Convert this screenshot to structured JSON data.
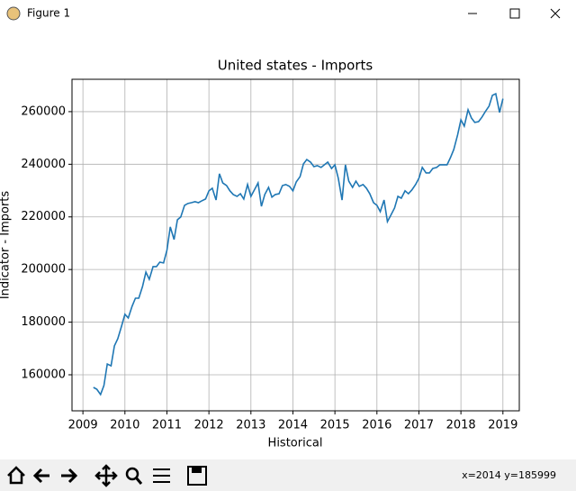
{
  "window": {
    "title": "Figure 1",
    "status": "x=2014 y=185999"
  },
  "chart_data": {
    "type": "line",
    "title": "United states - Imports",
    "x_label": "Historical",
    "y_label": "Indicator - Imports",
    "x": [
      2009.25,
      2009.33,
      2009.42,
      2009.5,
      2009.58,
      2009.67,
      2009.75,
      2009.83,
      2009.92,
      2010,
      2010.08,
      2010.17,
      2010.25,
      2010.33,
      2010.42,
      2010.5,
      2010.58,
      2010.67,
      2010.75,
      2010.83,
      2010.92,
      2011,
      2011.08,
      2011.17,
      2011.25,
      2011.33,
      2011.42,
      2011.5,
      2011.58,
      2011.67,
      2011.75,
      2011.83,
      2011.92,
      2012,
      2012.08,
      2012.17,
      2012.25,
      2012.33,
      2012.42,
      2012.5,
      2012.58,
      2012.67,
      2012.75,
      2012.83,
      2012.92,
      2013,
      2013.08,
      2013.17,
      2013.25,
      2013.33,
      2013.42,
      2013.5,
      2013.58,
      2013.67,
      2013.75,
      2013.83,
      2013.92,
      2014,
      2014.08,
      2014.17,
      2014.25,
      2014.33,
      2014.42,
      2014.5,
      2014.58,
      2014.67,
      2014.75,
      2014.83,
      2014.92,
      2015,
      2015.08,
      2015.17,
      2015.25,
      2015.33,
      2015.42,
      2015.5,
      2015.58,
      2015.67,
      2015.75,
      2015.83,
      2015.92,
      2016,
      2016.08,
      2016.17,
      2016.25,
      2016.33,
      2016.42,
      2016.5,
      2016.58,
      2016.67,
      2016.75,
      2016.83,
      2016.92,
      2017,
      2017.08,
      2017.17,
      2017.25,
      2017.33,
      2017.42,
      2017.5,
      2017.58,
      2017.67,
      2017.75,
      2017.83,
      2017.92,
      2018,
      2018.08,
      2018.17,
      2018.25,
      2018.33,
      2018.42,
      2018.5,
      2018.58,
      2018.67,
      2018.75,
      2018.83,
      2018.92,
      2019
    ],
    "values": [
      155200,
      154500,
      152500,
      155900,
      164100,
      163400,
      171000,
      173700,
      178500,
      183000,
      181600,
      186000,
      189100,
      189100,
      193600,
      199000,
      196300,
      201100,
      201100,
      202800,
      202500,
      207300,
      216200,
      211400,
      218900,
      220000,
      224400,
      225100,
      225400,
      225800,
      225400,
      226100,
      226800,
      229900,
      230900,
      226400,
      236400,
      232900,
      231900,
      229900,
      228500,
      227800,
      228800,
      226800,
      232300,
      227800,
      230200,
      232900,
      224000,
      228500,
      231200,
      227500,
      228500,
      228800,
      231900,
      232300,
      231600,
      229900,
      233300,
      235300,
      240100,
      241800,
      240800,
      239100,
      239500,
      238800,
      239800,
      240800,
      238400,
      239800,
      234700,
      226400,
      239800,
      233600,
      231200,
      233600,
      231600,
      232300,
      230900,
      228800,
      225400,
      224400,
      222000,
      226400,
      218200,
      220600,
      223400,
      227800,
      227100,
      229900,
      228800,
      230200,
      232300,
      234700,
      238800,
      236700,
      236700,
      238400,
      238800,
      239800,
      239800,
      239800,
      242500,
      245600,
      251100,
      256900,
      254500,
      260700,
      257600,
      255900,
      256200,
      257900,
      260000,
      262100,
      266200,
      266800,
      259700,
      264900
    ],
    "color": "#1f77b4",
    "xlim": [
      2008.74,
      2019.39
    ],
    "ylim": [
      146300,
      272300
    ],
    "xticks": [
      2009,
      2010,
      2011,
      2012,
      2013,
      2014,
      2015,
      2016,
      2017,
      2018,
      2019
    ],
    "yticks": [
      160000,
      180000,
      200000,
      220000,
      240000,
      260000
    ],
    "grid": true
  }
}
